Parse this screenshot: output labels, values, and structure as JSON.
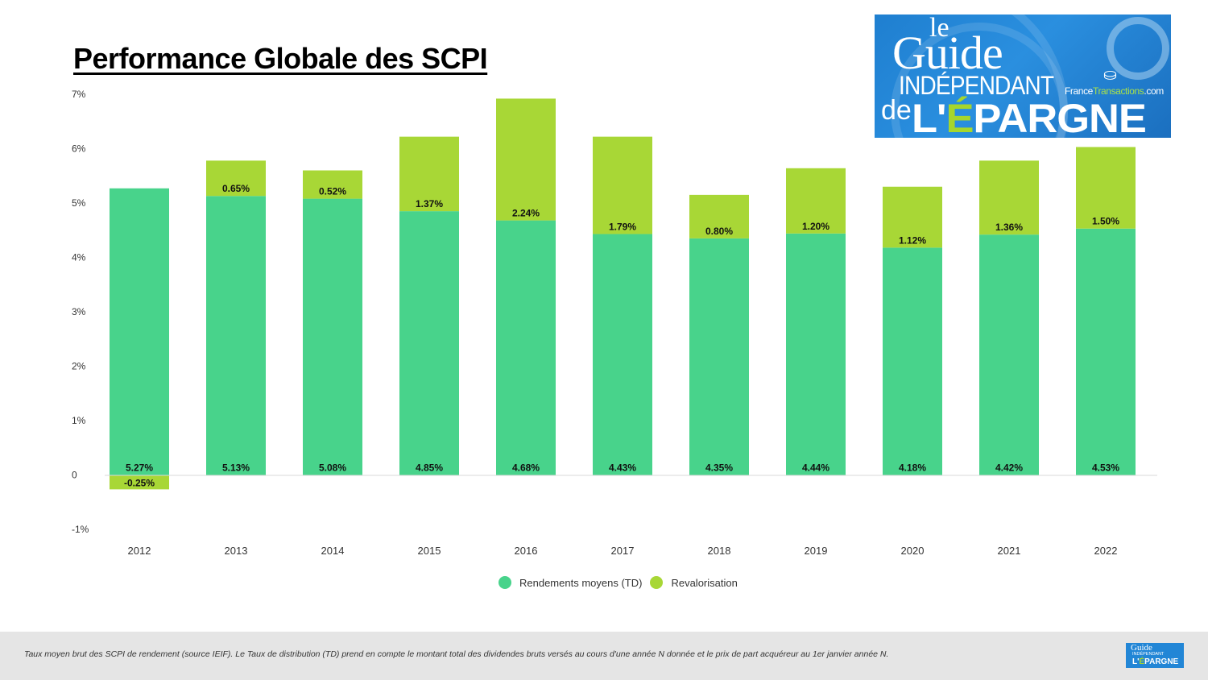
{
  "page": {
    "title": "Performance Globale des SCPI",
    "footnote": "Taux moyen brut des SCPI de rendement (source IEIF). Le Taux de distribution (TD) prend en compte le montant total des dividendes bruts versés au cours d'une année N donnée et le prix de part acquéreur au 1er janvier année N."
  },
  "logo": {
    "le": "le",
    "guide": "Guide",
    "independant": "INDÉPENDANT",
    "de": "de",
    "epargne_prefix": "L'",
    "epargne_accent": "É",
    "epargne_rest": "PARGNE",
    "site_france": "France",
    "site_transactions": "Transactions",
    "site_com": ".com"
  },
  "colors": {
    "rendement": "#48d38b",
    "revalorisation": "#a8d736",
    "axis": "#d9d9d9"
  },
  "chart_data": {
    "type": "bar",
    "stacked": true,
    "title": "Performance Globale des SCPI",
    "xlabel": "",
    "ylabel": "",
    "ylim": [
      -1,
      7
    ],
    "yticks": [
      -1,
      0,
      1,
      2,
      3,
      4,
      5,
      6,
      7
    ],
    "ytick_labels": [
      "-1%",
      "0",
      "1%",
      "2%",
      "3%",
      "4%",
      "5%",
      "6%",
      "7%"
    ],
    "grid": false,
    "legend_position": "bottom",
    "categories": [
      "2012",
      "2013",
      "2014",
      "2015",
      "2016",
      "2017",
      "2018",
      "2019",
      "2020",
      "2021",
      "2022"
    ],
    "series": [
      {
        "name": "Rendements moyens (TD)",
        "values": [
          5.27,
          5.13,
          5.08,
          4.85,
          4.68,
          4.43,
          4.35,
          4.44,
          4.18,
          4.42,
          4.53
        ],
        "labels": [
          "5.27%",
          "5.13%",
          "5.08%",
          "4.85%",
          "4.68%",
          "4.43%",
          "4.35%",
          "4.44%",
          "4.18%",
          "4.42%",
          "4.53%"
        ]
      },
      {
        "name": "Revalorisation",
        "values": [
          -0.25,
          0.65,
          0.52,
          1.37,
          2.24,
          1.79,
          0.8,
          1.2,
          1.12,
          1.36,
          1.5
        ],
        "labels": [
          "-0.25%",
          "0.65%",
          "0.52%",
          "1.37%",
          "2.24%",
          "1.79%",
          "0.80%",
          "1.20%",
          "1.12%",
          "1.36%",
          "1.50%"
        ]
      }
    ]
  }
}
